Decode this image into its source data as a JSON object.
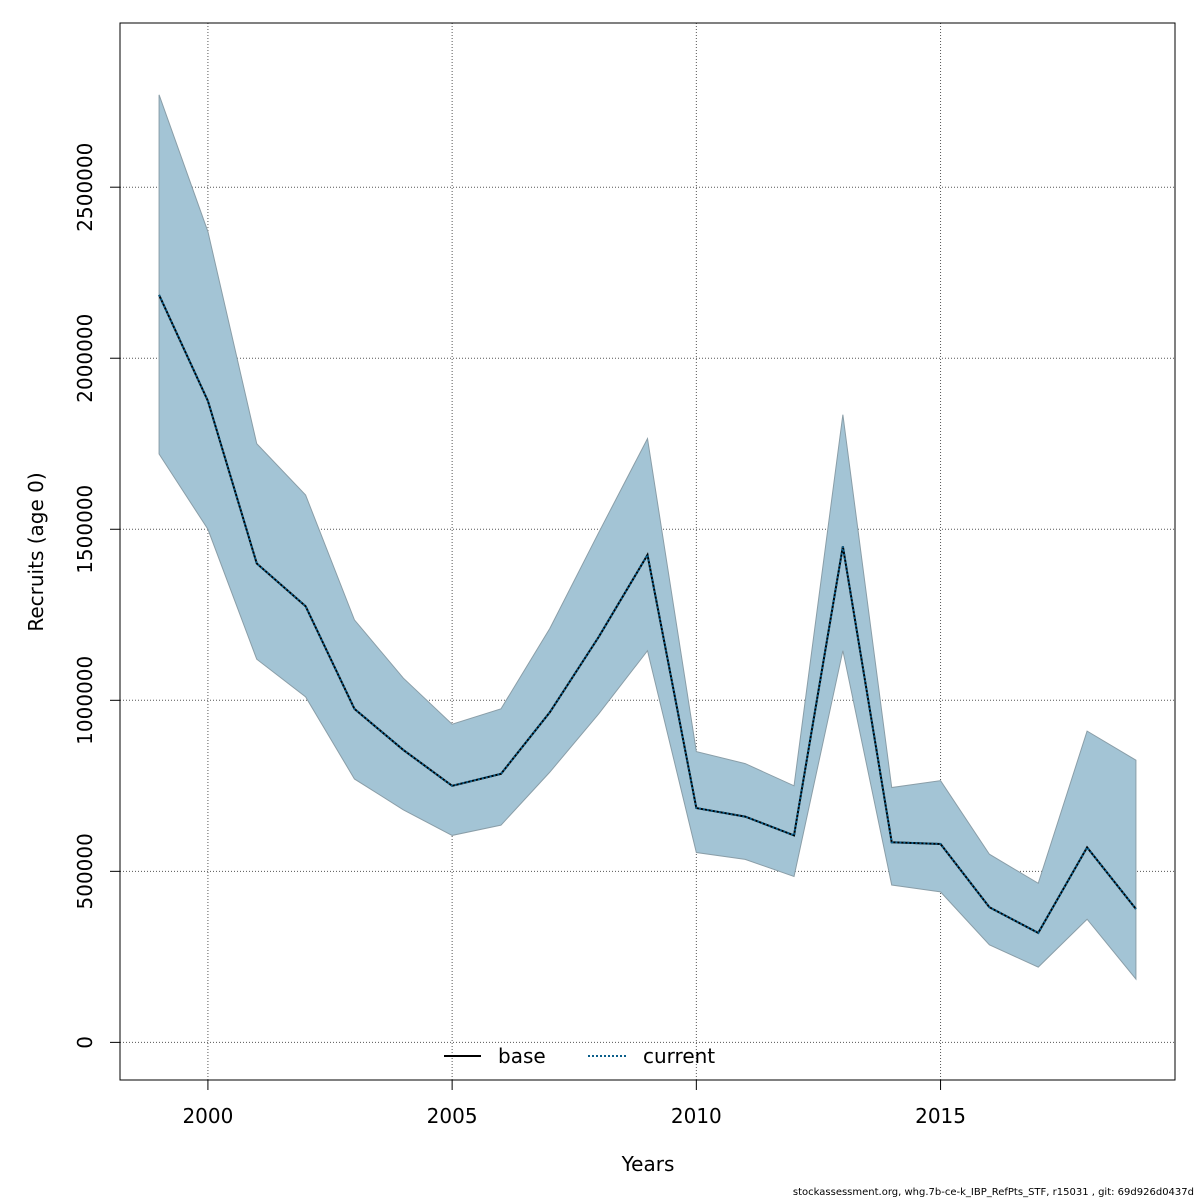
{
  "chart_data": {
    "type": "line",
    "xlabel": "Years",
    "ylabel": "Recruits (age 0)",
    "xlim": [
      1998.2,
      2019.8
    ],
    "ylim": [
      -110000,
      2980000
    ],
    "x_ticks": [
      2000,
      2005,
      2010,
      2015
    ],
    "x_tick_labels": [
      "2000",
      "2005",
      "2010",
      "2015"
    ],
    "y_ticks": [
      0,
      500000,
      1000000,
      1500000,
      2000000,
      2500000
    ],
    "y_tick_labels": [
      "0",
      "500000",
      "1000000",
      "1500000",
      "2000000",
      "2500000"
    ],
    "grid": true,
    "legend_position": "bottom-center",
    "x": [
      1999,
      2000,
      2001,
      2002,
      2003,
      2004,
      2005,
      2006,
      2007,
      2008,
      2009,
      2010,
      2011,
      2012,
      2013,
      2014,
      2015,
      2016,
      2017,
      2018,
      2019
    ],
    "band": {
      "fill_color": "#a3c4d5",
      "edge_color": "#8a9ea8",
      "lower": [
        1720000,
        1500000,
        1120000,
        1010000,
        770000,
        680000,
        605000,
        635000,
        790000,
        960000,
        1145000,
        555000,
        535000,
        485000,
        1145000,
        460000,
        440000,
        285000,
        220000,
        360000,
        185000
      ],
      "upper": [
        2770000,
        2370000,
        1750000,
        1600000,
        1235000,
        1065000,
        930000,
        975000,
        1210000,
        1490000,
        1765000,
        850000,
        815000,
        750000,
        1835000,
        745000,
        765000,
        550000,
        465000,
        910000,
        825000
      ]
    },
    "series": [
      {
        "name": "base",
        "color": "#000000",
        "line_style": "solid",
        "values": [
          2185000,
          1875000,
          1400000,
          1275000,
          975000,
          855000,
          750000,
          785000,
          965000,
          1185000,
          1425000,
          685000,
          660000,
          605000,
          1450000,
          585000,
          580000,
          395000,
          320000,
          570000,
          390000
        ]
      },
      {
        "name": "current",
        "color": "#0b5e8a",
        "line_style": "dotted",
        "values": [
          2185000,
          1875000,
          1400000,
          1275000,
          975000,
          855000,
          750000,
          785000,
          965000,
          1185000,
          1425000,
          685000,
          660000,
          605000,
          1450000,
          585000,
          580000,
          395000,
          320000,
          570000,
          390000
        ]
      }
    ]
  },
  "footer": "stockassessment.org, whg.7b-ce-k_IBP_RefPts_STF, r15031 , git: 69d926d0437d"
}
